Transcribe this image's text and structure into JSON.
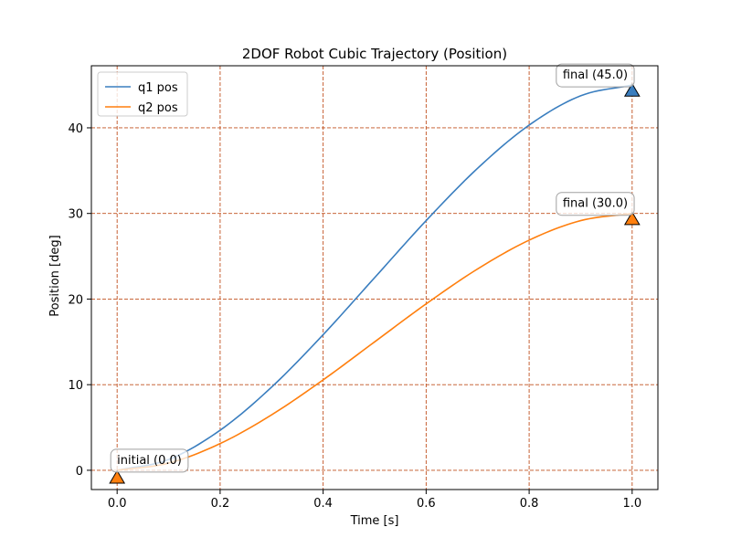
{
  "chart_data": {
    "type": "line",
    "title": "2DOF Robot Cubic Trajectory (Position)",
    "xlabel": "Time [s]",
    "ylabel": "Position [deg]",
    "xlim": [
      -0.05,
      1.05
    ],
    "ylim": [
      -2.25,
      47.25
    ],
    "xticks": [
      0.0,
      0.2,
      0.4,
      0.6,
      0.8,
      1.0
    ],
    "xtick_labels": [
      "0.0",
      "0.2",
      "0.4",
      "0.6",
      "0.8",
      "1.0"
    ],
    "yticks": [
      0,
      10,
      20,
      30,
      40
    ],
    "ytick_labels": [
      "0",
      "10",
      "20",
      "30",
      "40"
    ],
    "grid": true,
    "grid_color": "#c0501f",
    "legend_position": "upper-left",
    "x": [
      0.0,
      0.1,
      0.2,
      0.3,
      0.4,
      0.5,
      0.6,
      0.7,
      0.8,
      0.9,
      1.0
    ],
    "series": [
      {
        "name": "q1 pos",
        "color": "#3a7ebf",
        "values": [
          0.0,
          1.26,
          4.68,
          9.72,
          15.84,
          22.5,
          29.16,
          35.28,
          40.32,
          43.74,
          45.0
        ]
      },
      {
        "name": "q2 pos",
        "color": "#ff7f0e",
        "values": [
          0.0,
          0.84,
          3.12,
          6.48,
          10.56,
          15.0,
          19.44,
          23.52,
          26.88,
          29.16,
          30.0
        ]
      }
    ],
    "markers": [
      {
        "x": 0.0,
        "y": -0.9,
        "color": "#ff7f0e",
        "shape": "triangle-up"
      },
      {
        "x": 1.0,
        "y": 44.3,
        "color": "#3a7ebf",
        "shape": "triangle-up"
      },
      {
        "x": 1.0,
        "y": 29.3,
        "color": "#ff7f0e",
        "shape": "triangle-up"
      }
    ],
    "annotations": [
      {
        "text": "initial (0.0)",
        "x": 0.0,
        "y": 0.0
      },
      {
        "text": "final (45.0)",
        "x": 1.0,
        "y": 45.0
      },
      {
        "text": "final (30.0)",
        "x": 1.0,
        "y": 30.0
      }
    ]
  }
}
